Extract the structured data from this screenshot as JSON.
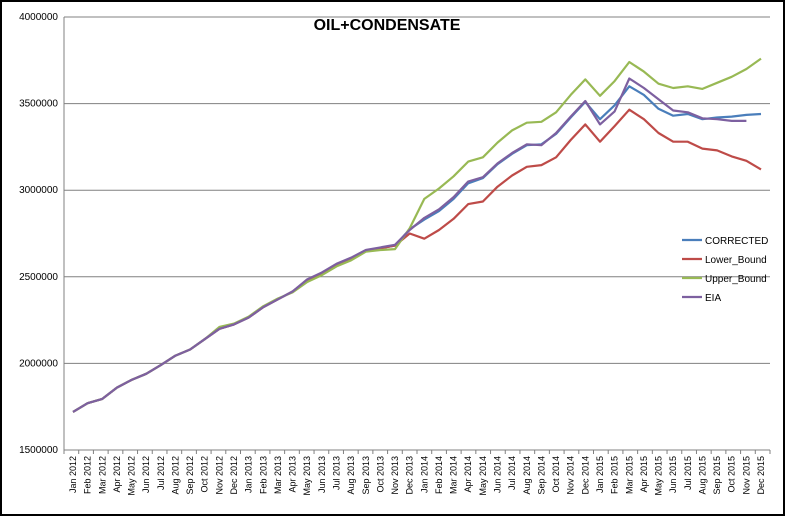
{
  "chart_data": {
    "type": "line",
    "title": "OIL+CONDENSATE",
    "xlabel": "",
    "ylabel": "",
    "ylim": [
      1500000,
      4000000
    ],
    "yticks": [
      1500000,
      2000000,
      2500000,
      3000000,
      3500000,
      4000000
    ],
    "grid": true,
    "legend_position": "right",
    "categories": [
      "Jan 2012",
      "Feb 2012",
      "Mar 2012",
      "Apr 2012",
      "May 2012",
      "Jun 2012",
      "Jul 2012",
      "Aug 2012",
      "Sep 2012",
      "Oct 2012",
      "Nov 2012",
      "Dec 2012",
      "Jan 2013",
      "Feb 2013",
      "Mar 2013",
      "Apr 2013",
      "May 2013",
      "Jun 2013",
      "Jul 2013",
      "Aug 2013",
      "Sep 2013",
      "Oct 2013",
      "Nov 2013",
      "Dec 2013",
      "Jan 2014",
      "Feb 2014",
      "Mar 2014",
      "Apr 2014",
      "May 2014",
      "Jun 2014",
      "Jul 2014",
      "Aug 2014",
      "Sep 2014",
      "Oct 2014",
      "Nov 2014",
      "Dec 2014",
      "Jan 2015",
      "Feb 2015",
      "Mar 2015",
      "Apr 2015",
      "May 2015",
      "Jun 2015",
      "Jul 2015",
      "Aug 2015",
      "Sep 2015",
      "Oct 2015",
      "Nov 2015",
      "Dec 2015"
    ],
    "series": [
      {
        "name": "CORRECTED",
        "color": "#4a7ebb",
        "values": [
          1720000,
          1770000,
          1795000,
          1860000,
          1905000,
          1940000,
          1990000,
          2045000,
          2080000,
          2140000,
          2200000,
          2225000,
          2265000,
          2325000,
          2370000,
          2415000,
          2480000,
          2520000,
          2570000,
          2605000,
          2650000,
          2665000,
          2680000,
          2775000,
          2830000,
          2880000,
          2950000,
          3040000,
          3070000,
          3150000,
          3210000,
          3260000,
          3265000,
          3325000,
          3420000,
          3510000,
          3410000,
          3490000,
          3600000,
          3550000,
          3470000,
          3430000,
          3440000,
          3410000,
          3420000,
          3425000,
          3435000,
          3440000
        ]
      },
      {
        "name": "Lower_Bound",
        "color": "#be4b48",
        "values": [
          1720000,
          1770000,
          1795000,
          1860000,
          1905000,
          1940000,
          1990000,
          2045000,
          2080000,
          2140000,
          2200000,
          2225000,
          2265000,
          2325000,
          2370000,
          2415000,
          2480000,
          2520000,
          2570000,
          2605000,
          2650000,
          2665000,
          2680000,
          2750000,
          2720000,
          2770000,
          2835000,
          2920000,
          2935000,
          3020000,
          3085000,
          3135000,
          3145000,
          3190000,
          3290000,
          3380000,
          3280000,
          3370000,
          3465000,
          3410000,
          3330000,
          3280000,
          3280000,
          3240000,
          3230000,
          3195000,
          3170000,
          3120000
        ]
      },
      {
        "name": "Upper_Bound",
        "color": "#98b954",
        "values": [
          1720000,
          1770000,
          1795000,
          1860000,
          1905000,
          1940000,
          1990000,
          2045000,
          2080000,
          2140000,
          2210000,
          2230000,
          2270000,
          2330000,
          2375000,
          2410000,
          2470000,
          2510000,
          2560000,
          2595000,
          2645000,
          2655000,
          2660000,
          2780000,
          2950000,
          3010000,
          3080000,
          3165000,
          3190000,
          3275000,
          3345000,
          3390000,
          3395000,
          3450000,
          3550000,
          3640000,
          3545000,
          3630000,
          3740000,
          3685000,
          3615000,
          3590000,
          3600000,
          3585000,
          3620000,
          3655000,
          3700000,
          3760000
        ]
      },
      {
        "name": "EIA",
        "color": "#7d60a0",
        "values": [
          1720000,
          1770000,
          1795000,
          1860000,
          1905000,
          1940000,
          1990000,
          2045000,
          2080000,
          2140000,
          2200000,
          2225000,
          2265000,
          2325000,
          2370000,
          2415000,
          2485000,
          2525000,
          2575000,
          2610000,
          2655000,
          2670000,
          2685000,
          2770000,
          2840000,
          2890000,
          2960000,
          3050000,
          3075000,
          3155000,
          3215000,
          3265000,
          3260000,
          3330000,
          3425000,
          3515000,
          3380000,
          3455000,
          3645000,
          3590000,
          3525000,
          3460000,
          3450000,
          3415000,
          3410000,
          3400000,
          3400000,
          null
        ]
      }
    ]
  }
}
